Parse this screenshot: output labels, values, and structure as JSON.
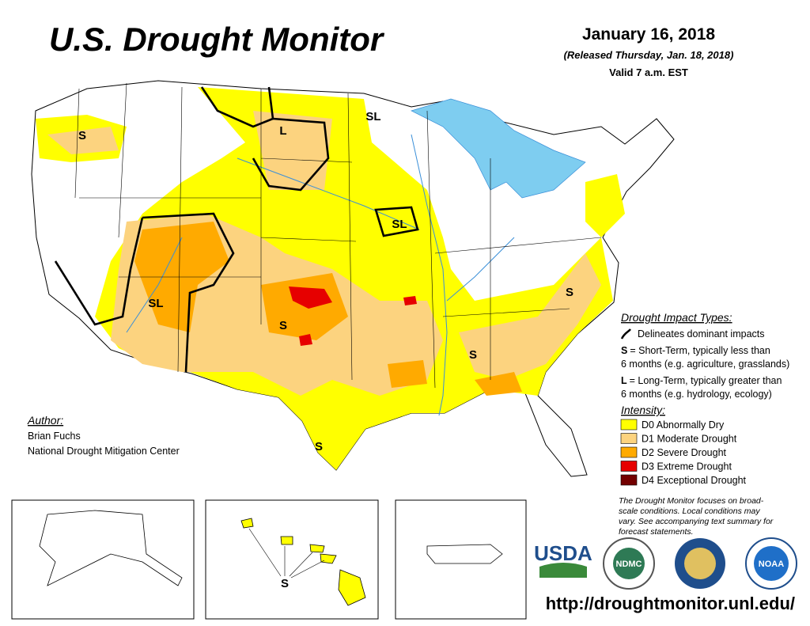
{
  "header": {
    "title": "U.S. Drought Monitor",
    "date": "January 16, 2018",
    "released": "(Released Thursday, Jan. 18, 2018)",
    "valid": "Valid 7 a.m. EST"
  },
  "map_labels": [
    "S",
    "L",
    "SL",
    "SL",
    "SL",
    "S",
    "S",
    "S",
    "S",
    "S"
  ],
  "legend": {
    "impact_title": "Drought Impact Types:",
    "delineates": "Delineates dominant impacts",
    "impacts": [
      {
        "key": "S",
        "text": "= Short-Term, typically less than",
        "text2": "6 months (e.g. agriculture, grasslands)"
      },
      {
        "key": "L",
        "text": "= Long-Term, typically greater than",
        "text2": "6 months (e.g. hydrology, ecology)"
      }
    ],
    "intensity_title": "Intensity:",
    "intensity": [
      {
        "label": "D0 Abnormally Dry",
        "color": "#ffff00"
      },
      {
        "label": "D1 Moderate Drought",
        "color": "#fcd37f"
      },
      {
        "label": "D2 Severe Drought",
        "color": "#ffaa00"
      },
      {
        "label": "D3 Extreme Drought",
        "color": "#e60000"
      },
      {
        "label": "D4 Exceptional Drought",
        "color": "#730000"
      }
    ]
  },
  "author": {
    "heading": "Author:",
    "name": "Brian Fuchs",
    "org": "National Drought Mitigation Center"
  },
  "note": [
    "The Drought Monitor focuses on broad-",
    "scale conditions. Local conditions may",
    "vary. See accompanying text summary for",
    "forecast statements."
  ],
  "logos": [
    "USDA",
    "NDMC",
    "NOAA"
  ],
  "url": "http://droughtmonitor.unl.edu/"
}
